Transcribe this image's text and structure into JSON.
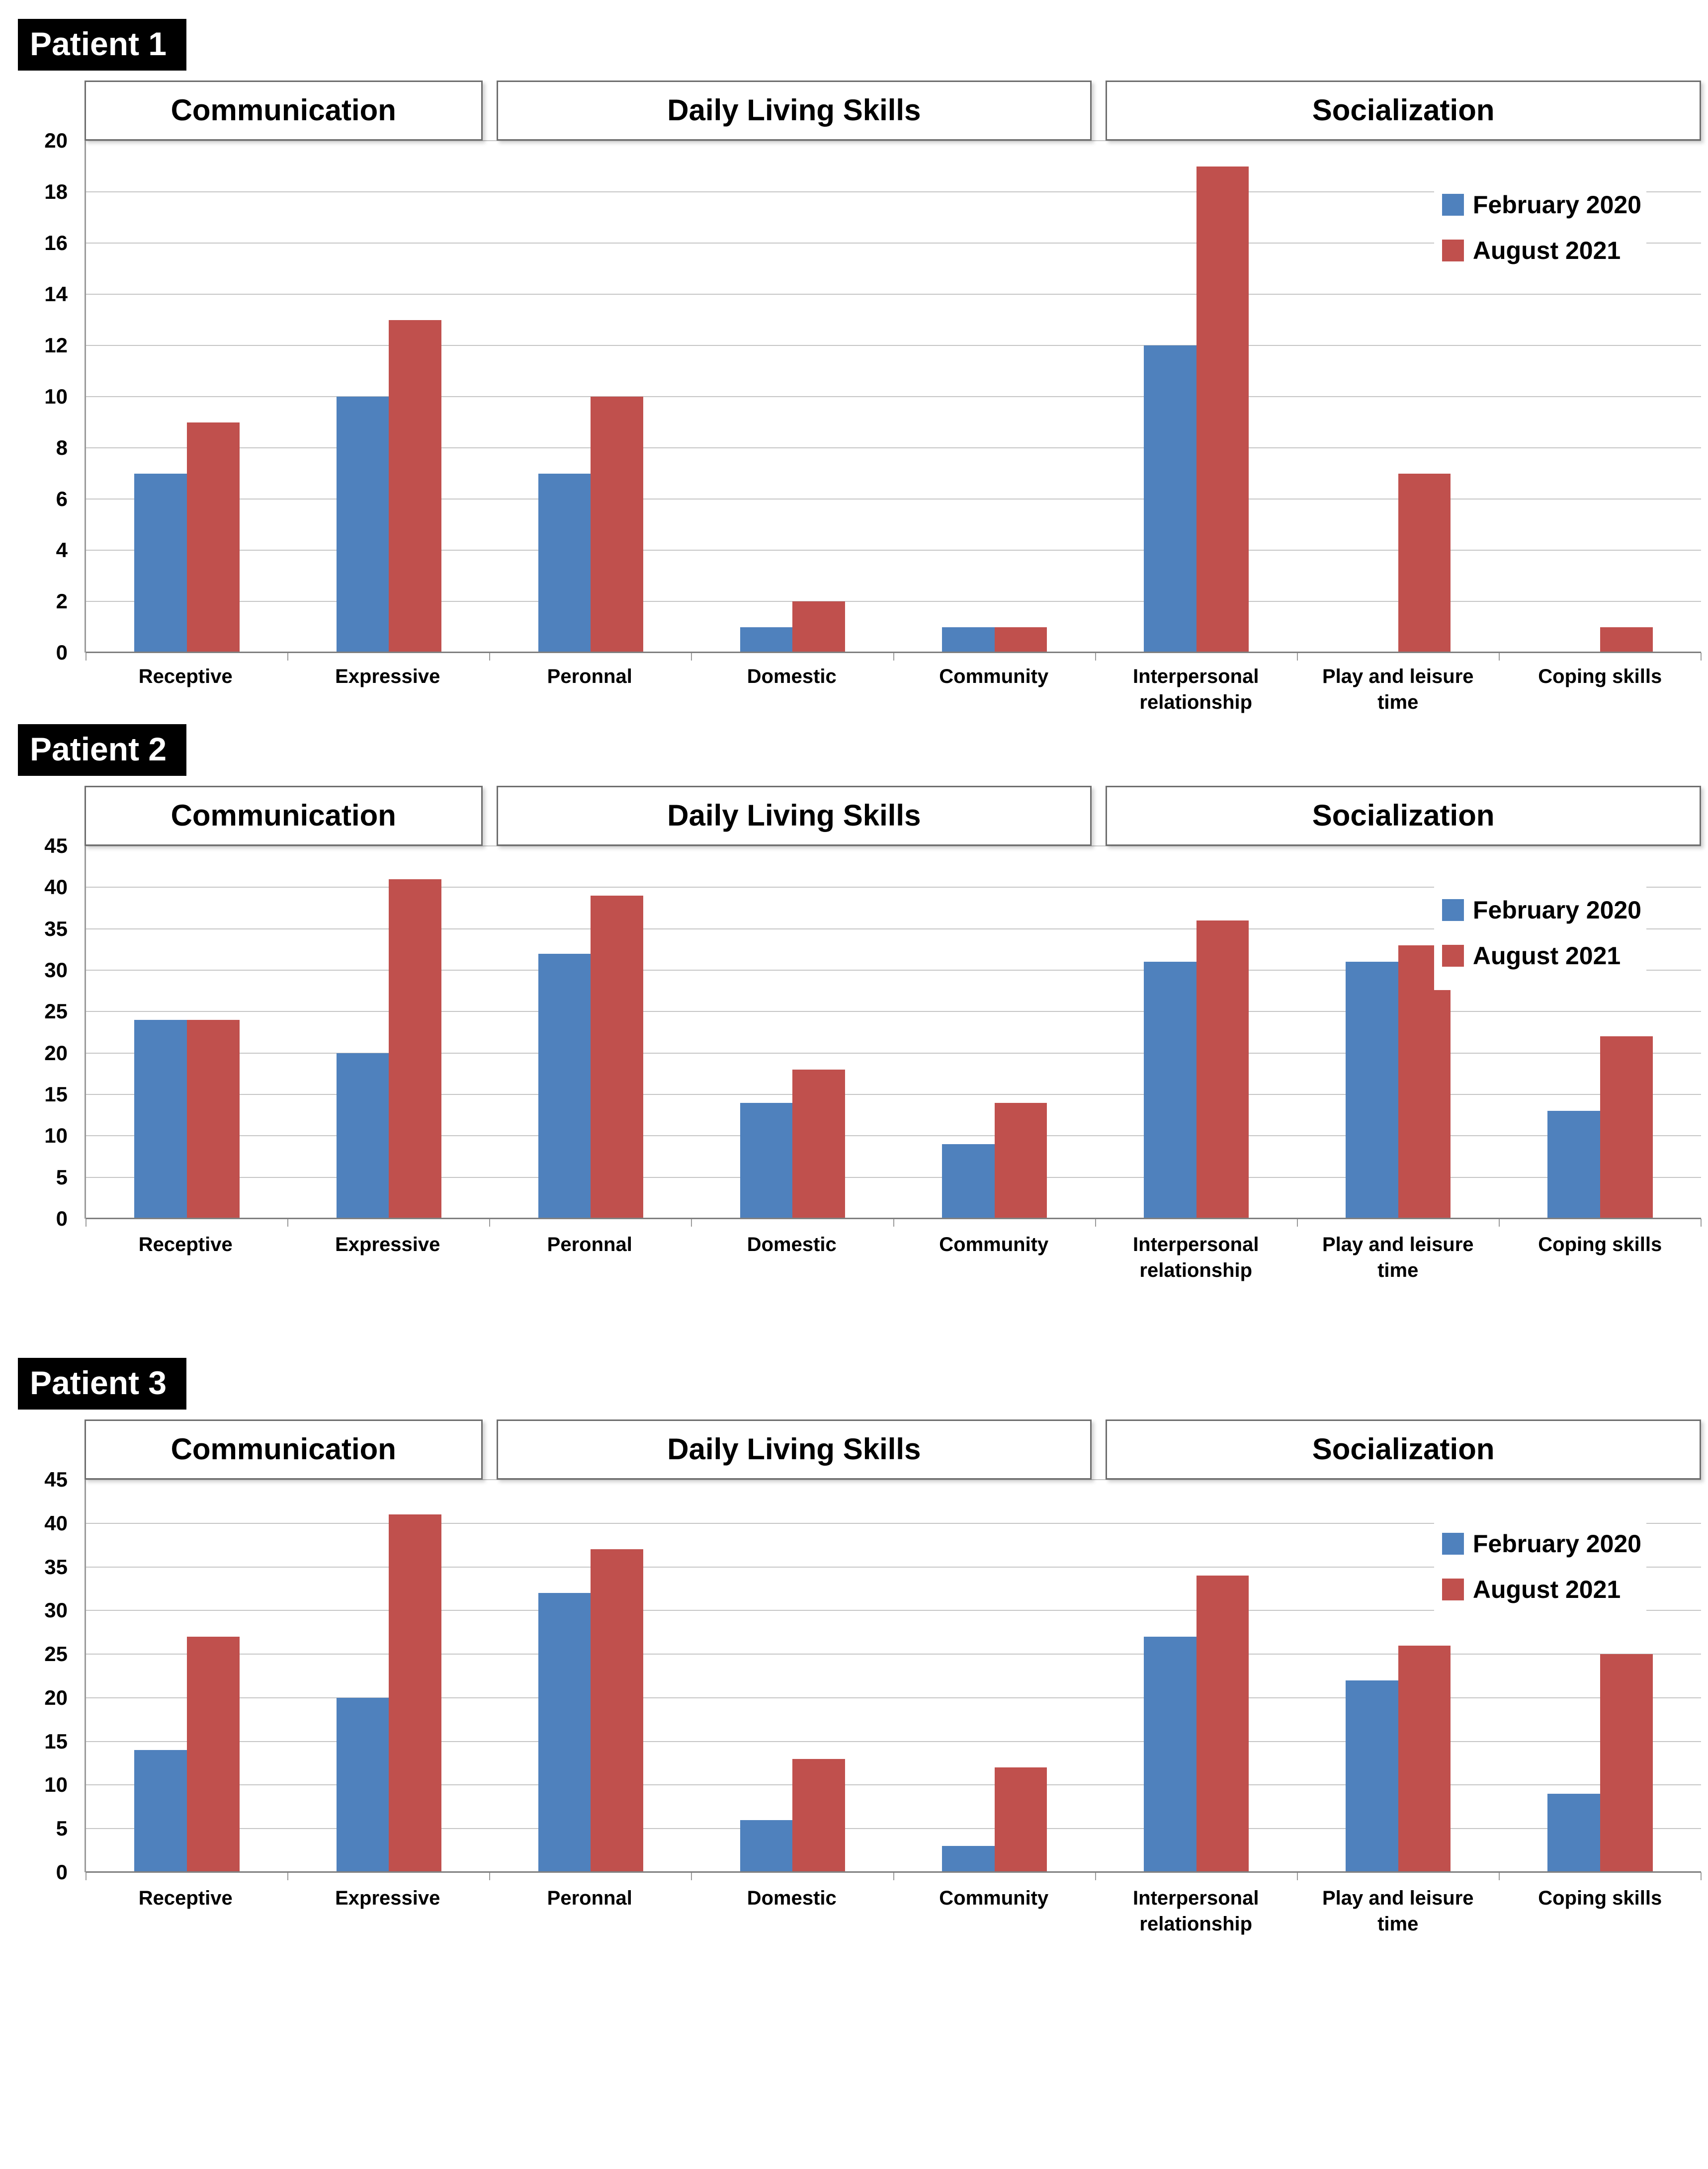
{
  "page": {
    "background": "#ffffff"
  },
  "legend": {
    "items": [
      {
        "label": "February 2020",
        "color": "#4F81BD"
      },
      {
        "label": "August 2021",
        "color": "#C0504D"
      }
    ],
    "position": "top-right"
  },
  "chart_data": [
    {
      "type": "bar",
      "title": "Patient 1",
      "section_headers": [
        {
          "label": "Communication",
          "span": 2
        },
        {
          "label": "Daily Living Skills",
          "span": 3
        },
        {
          "label": "Socialization",
          "span": 3
        }
      ],
      "categories": [
        "Receptive",
        "Expressive",
        "Peronnal",
        "Domestic",
        "Community",
        "Interpersonal relationship",
        "Play and leisure time",
        "Coping skills"
      ],
      "series": [
        {
          "name": "February 2020",
          "color": "#4F81BD",
          "values": [
            7,
            10,
            7,
            1,
            1,
            12,
            0,
            0
          ]
        },
        {
          "name": "August 2021",
          "color": "#C0504D",
          "values": [
            9,
            13,
            10,
            2,
            1,
            19,
            7,
            1
          ]
        }
      ],
      "ylim": [
        0,
        20
      ],
      "ytick_step": 2,
      "yticks": [
        0,
        2,
        4,
        6,
        8,
        10,
        12,
        14,
        16,
        18,
        20
      ],
      "xlabel": "",
      "ylabel": "",
      "grid": true,
      "legend_position": "top-right"
    },
    {
      "type": "bar",
      "title": "Patient 2",
      "section_headers": [
        {
          "label": "Communication",
          "span": 2
        },
        {
          "label": "Daily Living Skills",
          "span": 3
        },
        {
          "label": "Socialization",
          "span": 3
        }
      ],
      "categories": [
        "Receptive",
        "Expressive",
        "Peronnal",
        "Domestic",
        "Community",
        "Interpersonal relationship",
        "Play and leisure time",
        "Coping skills"
      ],
      "series": [
        {
          "name": "February 2020",
          "color": "#4F81BD",
          "values": [
            24,
            20,
            32,
            14,
            9,
            31,
            31,
            13
          ]
        },
        {
          "name": "August 2021",
          "color": "#C0504D",
          "values": [
            24,
            41,
            39,
            18,
            14,
            36,
            33,
            22
          ]
        }
      ],
      "ylim": [
        0,
        45
      ],
      "ytick_step": 5,
      "yticks": [
        0,
        5,
        10,
        15,
        20,
        25,
        30,
        35,
        40,
        45
      ],
      "xlabel": "",
      "ylabel": "",
      "grid": true,
      "legend_position": "top-right"
    },
    {
      "type": "bar",
      "title": "Patient 3",
      "section_headers": [
        {
          "label": "Communication",
          "span": 2
        },
        {
          "label": "Daily Living Skills",
          "span": 3
        },
        {
          "label": "Socialization",
          "span": 3
        }
      ],
      "categories": [
        "Receptive",
        "Expressive",
        "Peronnal",
        "Domestic",
        "Community",
        "Interpersonal relationship",
        "Play and leisure time",
        "Coping skills"
      ],
      "series": [
        {
          "name": "February 2020",
          "color": "#4F81BD",
          "values": [
            14,
            20,
            32,
            6,
            3,
            27,
            22,
            9
          ]
        },
        {
          "name": "August 2021",
          "color": "#C0504D",
          "values": [
            27,
            41,
            37,
            13,
            12,
            34,
            26,
            25
          ]
        }
      ],
      "ylim": [
        0,
        45
      ],
      "ytick_step": 5,
      "yticks": [
        0,
        5,
        10,
        15,
        20,
        25,
        30,
        35,
        40,
        45
      ],
      "xlabel": "",
      "ylabel": "",
      "grid": true,
      "legend_position": "top-right"
    }
  ]
}
